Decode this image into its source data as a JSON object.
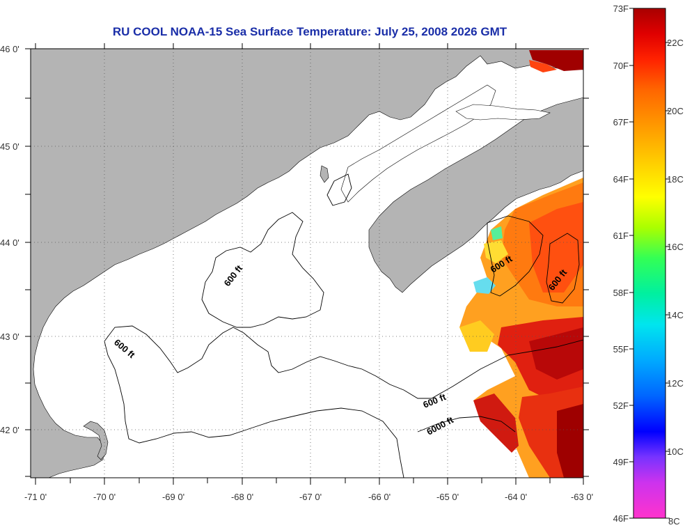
{
  "title": "RU COOL  NOAA-15  Sea Surface Temperature:  July 25, 2008 2026 GMT",
  "map": {
    "lat_labels": [
      "46 0'",
      "45 0'",
      "44 0'",
      "43 0'",
      "42 0'"
    ],
    "lon_labels": [
      "-71 0'",
      "-70 0'",
      "-69 0'",
      "-68 0'",
      "-67 0'",
      "-66 0'",
      "-65 0'",
      "-64 0'",
      "-63 0'"
    ],
    "lat_range": [
      41.5,
      46.0
    ],
    "lon_range": [
      -71.0,
      -63.0
    ],
    "contour_labels": [
      "600 ft",
      "600 ft",
      "600 ft",
      "600 ft",
      "600 ft",
      "6000 ft"
    ],
    "land_color": "#b4b4b4",
    "water_color": "#ffffff"
  },
  "colorbar": {
    "f_labels": [
      "73F",
      "70F",
      "67F",
      "64F",
      "61F",
      "58F",
      "55F",
      "52F",
      "49F",
      "46F"
    ],
    "c_labels": [
      "22C",
      "20C",
      "18C",
      "16C",
      "14C",
      "12C",
      "10C",
      "8C"
    ],
    "range_f": [
      46,
      73
    ],
    "colors": [
      "#ff33cc",
      "#cc33ee",
      "#7733ff",
      "#0000ff",
      "#0066ff",
      "#00aaff",
      "#00e5ee",
      "#00f0a0",
      "#33ff55",
      "#aaff00",
      "#ffff00",
      "#ffcc00",
      "#ff9900",
      "#ff6600",
      "#ff2200",
      "#e00000",
      "#a80000"
    ]
  }
}
